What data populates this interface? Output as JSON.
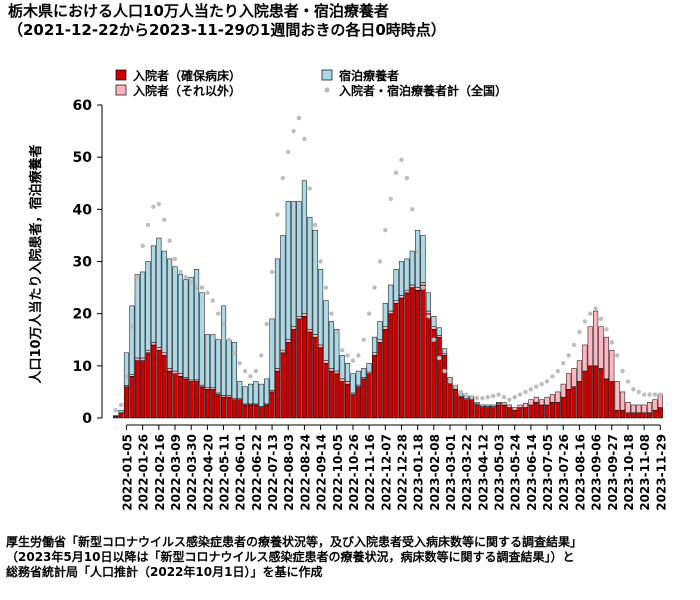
{
  "title": "栃木県における人口10万人当たり入院患者・宿泊療養者",
  "subtitle": "（2021-12-22から2023-11-29の1週間おきの各日0時時点）",
  "source_lines": [
    "厚生労働省「新型コロナウイルス感染症患者の療養状況等，及び入院患者受入病床数等に関する調査結果」",
    "（2023年5月10日以降は「新型コロナウイルス感染症患者の療養状況，病床数等に関する調査結果」）と",
    "総務省統計局「人口推計（2022年10月1日）」を基に作成"
  ],
  "colors": {
    "severe": "#cc0000",
    "hosp_other": "#ffb6c1",
    "lodging": "#add8e6",
    "national": "#bebebe"
  },
  "chart_data": {
    "type": "bar",
    "stacked": true,
    "ylabel": "人口10万人当たり入院患者，宿泊療養者",
    "ylim": [
      0,
      60
    ],
    "yticks": [
      0,
      10,
      20,
      30,
      40,
      50,
      60
    ],
    "grid": false,
    "legend_position": "top",
    "legend": [
      {
        "label": "入院者（確保病床）",
        "kind": "box",
        "color_key": "severe"
      },
      {
        "label": "宿泊療養者",
        "kind": "box",
        "color_key": "lodging"
      },
      {
        "label": "入院者（それ以外）",
        "kind": "box",
        "color_key": "hosp_other"
      },
      {
        "label": "入院者・宿泊療養者計（全国）",
        "kind": "dot",
        "color_key": "national"
      }
    ],
    "x_labels": [
      "2022-01-05",
      "2022-01-26",
      "2022-02-16",
      "2022-03-09",
      "2022-03-30",
      "2022-04-20",
      "2022-05-11",
      "2022-06-01",
      "2022-06-22",
      "2022-07-13",
      "2022-08-03",
      "2022-08-24",
      "2022-09-14",
      "2022-10-05",
      "2022-10-26",
      "2022-11-16",
      "2022-12-07",
      "2022-12-28",
      "2023-01-18",
      "2023-02-08",
      "2023-03-01",
      "2023-03-22",
      "2023-04-12",
      "2023-05-03",
      "2023-05-24",
      "2023-06-14",
      "2023-07-05",
      "2023-07-26",
      "2023-08-16",
      "2023-09-06",
      "2023-09-27",
      "2023-10-18",
      "2023-11-08",
      "2023-11-29"
    ],
    "x_label_first_index": 2,
    "x_label_step": 3,
    "dates": [
      "2021-12-22",
      "2021-12-29",
      "2022-01-05",
      "2022-01-12",
      "2022-01-19",
      "2022-01-26",
      "2022-02-02",
      "2022-02-09",
      "2022-02-16",
      "2022-02-23",
      "2022-03-02",
      "2022-03-09",
      "2022-03-16",
      "2022-03-23",
      "2022-03-30",
      "2022-04-06",
      "2022-04-13",
      "2022-04-20",
      "2022-04-27",
      "2022-05-04",
      "2022-05-11",
      "2022-05-18",
      "2022-05-25",
      "2022-06-01",
      "2022-06-08",
      "2022-06-15",
      "2022-06-22",
      "2022-06-29",
      "2022-07-06",
      "2022-07-13",
      "2022-07-20",
      "2022-07-27",
      "2022-08-03",
      "2022-08-10",
      "2022-08-17",
      "2022-08-24",
      "2022-08-31",
      "2022-09-07",
      "2022-09-14",
      "2022-09-21",
      "2022-09-28",
      "2022-10-05",
      "2022-10-12",
      "2022-10-19",
      "2022-10-26",
      "2022-11-02",
      "2022-11-09",
      "2022-11-16",
      "2022-11-23",
      "2022-11-30",
      "2022-12-07",
      "2022-12-14",
      "2022-12-21",
      "2022-12-28",
      "2023-01-04",
      "2023-01-11",
      "2023-01-18",
      "2023-01-25",
      "2023-02-01",
      "2023-02-08",
      "2023-02-15",
      "2023-02-22",
      "2023-03-01",
      "2023-03-08",
      "2023-03-15",
      "2023-03-22",
      "2023-03-29",
      "2023-04-05",
      "2023-04-12",
      "2023-04-19",
      "2023-04-26",
      "2023-05-03",
      "2023-05-10",
      "2023-05-17",
      "2023-05-24",
      "2023-05-31",
      "2023-06-07",
      "2023-06-14",
      "2023-06-21",
      "2023-06-28",
      "2023-07-05",
      "2023-07-12",
      "2023-07-19",
      "2023-07-26",
      "2023-08-02",
      "2023-08-09",
      "2023-08-16",
      "2023-08-23",
      "2023-08-30",
      "2023-09-06",
      "2023-09-13",
      "2023-09-20",
      "2023-09-27",
      "2023-10-04",
      "2023-10-11",
      "2023-10-18",
      "2023-10-25",
      "2023-11-01",
      "2023-11-08",
      "2023-11-15",
      "2023-11-22",
      "2023-11-29"
    ],
    "series": [
      {
        "name": "入院者（確保病床）",
        "color_key": "severe",
        "values": [
          0.3,
          1.0,
          6.0,
          8.0,
          11.0,
          11.0,
          12.5,
          14.0,
          13.0,
          12.0,
          9.0,
          8.5,
          8.0,
          7.5,
          7.0,
          7.0,
          6.0,
          5.5,
          5.5,
          4.5,
          4.0,
          4.0,
          3.5,
          3.5,
          2.5,
          2.5,
          2.5,
          2.0,
          2.5,
          5.0,
          9.0,
          12.5,
          14.5,
          17.0,
          19.0,
          19.5,
          16.5,
          15.5,
          13.5,
          10.5,
          9.0,
          8.5,
          7.0,
          6.5,
          4.5,
          6.0,
          7.5,
          8.5,
          12.0,
          14.5,
          17.0,
          20.0,
          22.0,
          23.0,
          24.0,
          25.0,
          24.5,
          25.5,
          20.0,
          17.0,
          15.5,
          12.0,
          7.0,
          5.5,
          4.0,
          3.5,
          3.5,
          2.5,
          2.0,
          2.0,
          2.0,
          2.5,
          2.5,
          2.0,
          1.5,
          2.0,
          2.0,
          2.5,
          3.0,
          2.5,
          2.5,
          3.0,
          3.0,
          4.0,
          5.5,
          6.0,
          7.0,
          9.0,
          10.0,
          10.0,
          9.5,
          7.5,
          7.0,
          1.5,
          1.5,
          1.0,
          1.0,
          1.0,
          1.0,
          1.0,
          1.5,
          2.0
        ]
      },
      {
        "name": "入院者（それ以外）",
        "color_key": "hosp_other",
        "values": [
          0.0,
          0.0,
          0.2,
          0.3,
          0.5,
          0.5,
          0.5,
          0.5,
          0.5,
          0.5,
          0.5,
          0.5,
          0.5,
          0.3,
          0.3,
          0.3,
          0.3,
          0.3,
          0.3,
          0.3,
          0.3,
          0.3,
          0.3,
          0.2,
          0.2,
          0.2,
          0.2,
          0.2,
          0.2,
          0.3,
          0.5,
          0.5,
          0.5,
          0.5,
          0.5,
          0.5,
          0.5,
          0.5,
          0.5,
          0.5,
          0.5,
          0.5,
          0.5,
          0.5,
          0.3,
          0.3,
          0.3,
          0.3,
          0.5,
          0.5,
          0.5,
          0.5,
          0.5,
          0.5,
          0.5,
          0.5,
          0.5,
          0.5,
          0.5,
          0.5,
          0.3,
          0.3,
          0.3,
          0.3,
          0.2,
          0.2,
          0.2,
          0.2,
          0.2,
          0.2,
          0.2,
          0.3,
          0.5,
          0.5,
          0.5,
          0.5,
          0.8,
          1.0,
          1.0,
          1.0,
          1.5,
          1.5,
          2.0,
          2.5,
          3.0,
          3.5,
          4.0,
          5.0,
          7.5,
          10.5,
          8.0,
          8.0,
          6.0,
          5.5,
          3.5,
          2.0,
          1.5,
          1.5,
          1.5,
          2.0,
          2.0,
          2.5
        ]
      },
      {
        "name": "宿泊療養者",
        "color_key": "lodging",
        "values": [
          0.2,
          0.5,
          6.3,
          13.2,
          16.0,
          16.5,
          17.0,
          18.5,
          21.0,
          19.5,
          21.0,
          20.0,
          19.0,
          18.7,
          19.7,
          21.2,
          17.7,
          10.2,
          10.2,
          10.2,
          17.2,
          10.7,
          10.7,
          3.3,
          3.3,
          3.8,
          4.3,
          4.3,
          4.8,
          13.7,
          21.0,
          22.0,
          26.5,
          24.0,
          22.0,
          25.5,
          21.5,
          20.0,
          14.5,
          11.5,
          9.0,
          8.0,
          4.5,
          3.5,
          3.7,
          2.7,
          1.7,
          1.7,
          3.0,
          3.5,
          4.5,
          5.0,
          6.0,
          6.5,
          6.0,
          6.5,
          11.0,
          9.0,
          3.5,
          2.0,
          1.5,
          1.0,
          0.5,
          0.5,
          0.5,
          0.5,
          0.5,
          0.3,
          0.3,
          0.3,
          0.3,
          0.2,
          0,
          0,
          0,
          0,
          0,
          0,
          0,
          0,
          0,
          0,
          0,
          0,
          0,
          0,
          0,
          0,
          0,
          0,
          0,
          0,
          0,
          0,
          0,
          0,
          0,
          0,
          0,
          0,
          0,
          0
        ]
      },
      {
        "name": "入院者・宿泊療養者計（全国）",
        "color_key": "national",
        "kind": "points",
        "values": [
          1.5,
          2.5,
          8.0,
          17.5,
          27.0,
          33.0,
          37.0,
          40.5,
          41.0,
          38.0,
          34.0,
          30.5,
          28.0,
          27.0,
          26.0,
          25.0,
          25.0,
          24.0,
          22.5,
          20.0,
          18.0,
          15.0,
          12.5,
          10.5,
          9.0,
          8.0,
          9.0,
          12.0,
          18.0,
          28.0,
          39.0,
          46.0,
          51.0,
          55.0,
          57.5,
          53.5,
          44.0,
          37.0,
          30.0,
          25.0,
          20.0,
          16.5,
          13.0,
          12.0,
          11.0,
          12.0,
          15.0,
          20.0,
          25.0,
          30.0,
          36.0,
          42.0,
          47.0,
          49.5,
          46.0,
          40.0,
          32.0,
          25.0,
          19.5,
          15.0,
          11.5,
          9.0,
          7.0,
          6.0,
          5.0,
          4.5,
          4.0,
          3.8,
          3.8,
          4.0,
          4.2,
          4.5,
          4.0,
          3.5,
          4.0,
          4.5,
          5.0,
          5.5,
          6.0,
          6.5,
          7.0,
          8.0,
          9.0,
          10.5,
          12.0,
          14.0,
          16.5,
          18.5,
          20.0,
          21.0,
          19.0,
          17.0,
          14.5,
          12.0,
          9.0,
          7.0,
          5.5,
          5.0,
          4.5,
          4.5,
          4.5,
          4.5
        ]
      }
    ]
  }
}
